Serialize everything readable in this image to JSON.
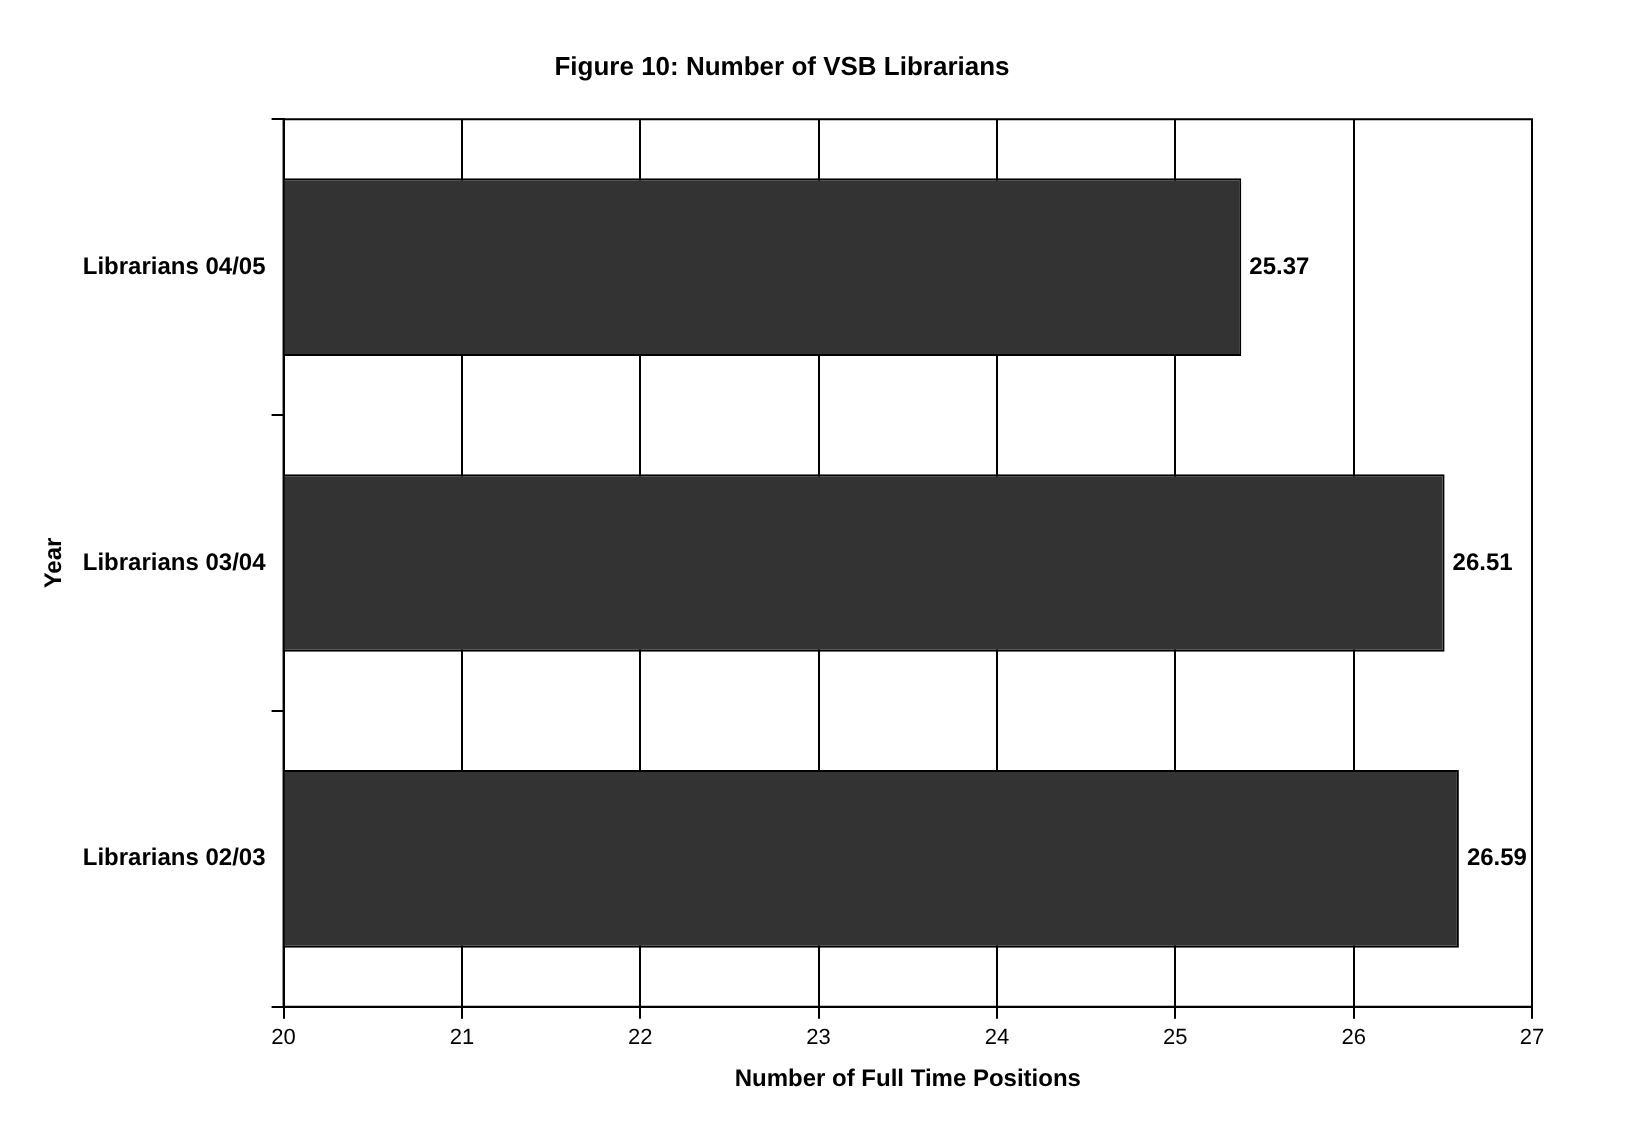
{
  "chart_data": {
    "type": "bar",
    "orientation": "horizontal",
    "title": "Figure 10: Number of VSB Librarians",
    "xlabel": "Number of Full Time Positions",
    "ylabel": "Year",
    "categories": [
      "Librarians 04/05",
      "Librarians 03/04",
      "Librarians 02/03"
    ],
    "values": [
      25.37,
      26.51,
      26.59
    ],
    "color": "#333333",
    "xlim": [
      20,
      27
    ],
    "xticks": [
      20,
      21,
      22,
      23,
      24,
      25,
      26,
      27
    ],
    "grid": "x",
    "data_labels": true
  }
}
